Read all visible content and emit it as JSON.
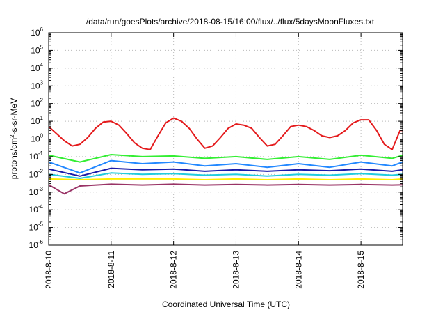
{
  "chart_data": {
    "type": "line",
    "title": "/data/run/goesPlots/archive/2018-08-15/16:00/flux/../flux/5daysMoonFluxes.txt",
    "xlabel": "Coordinated Universal Time (UTC)",
    "ylabel": {
      "pre": "protons/cm",
      "sup": "2",
      "post": "-s-sr-MeV"
    },
    "x_scale": "time",
    "y_scale": "log",
    "xlim": [
      "2018-08-10T00:00",
      "2018-08-15T16:00"
    ],
    "ylim": [
      1e-06,
      1000000.0
    ],
    "grid": true,
    "x_ticks": [
      "2018-8-10",
      "2018-8-11",
      "2018-8-12",
      "2018-8-13",
      "2018-8-14",
      "2018-8-15"
    ],
    "y_ticks": [
      {
        "base": "10",
        "exp": "-6",
        "value": 1e-06
      },
      {
        "base": "10",
        "exp": "-5",
        "value": 1e-05
      },
      {
        "base": "10",
        "exp": "-4",
        "value": 0.0001
      },
      {
        "base": "10",
        "exp": "-3",
        "value": 0.001
      },
      {
        "base": "10",
        "exp": "-2",
        "value": 0.01
      },
      {
        "base": "10",
        "exp": "-1",
        "value": 0.1
      },
      {
        "base": "10",
        "exp": "0",
        "value": 1
      },
      {
        "base": "10",
        "exp": "1",
        "value": 10
      },
      {
        "base": "10",
        "exp": "2",
        "value": 100
      },
      {
        "base": "10",
        "exp": "3",
        "value": 1000
      },
      {
        "base": "10",
        "exp": "4",
        "value": 10000
      },
      {
        "base": "10",
        "exp": "5",
        "value": 100000
      },
      {
        "base": "10",
        "exp": "6",
        "value": 1000000
      }
    ],
    "series": [
      {
        "color": "#e41a1c",
        "x": [
          "2018-08-10T00:00",
          "2018-08-10T03:00",
          "2018-08-10T06:00",
          "2018-08-10T09:00",
          "2018-08-10T12:00",
          "2018-08-10T15:00",
          "2018-08-10T18:00",
          "2018-08-10T21:00",
          "2018-08-11T00:00",
          "2018-08-11T03:00",
          "2018-08-11T06:00",
          "2018-08-11T09:00",
          "2018-08-11T12:00",
          "2018-08-11T15:00",
          "2018-08-11T18:00",
          "2018-08-11T21:00",
          "2018-08-12T00:00",
          "2018-08-12T03:00",
          "2018-08-12T06:00",
          "2018-08-12T09:00",
          "2018-08-12T12:00",
          "2018-08-12T15:00",
          "2018-08-12T18:00",
          "2018-08-12T21:00",
          "2018-08-13T00:00",
          "2018-08-13T03:00",
          "2018-08-13T06:00",
          "2018-08-13T09:00",
          "2018-08-13T12:00",
          "2018-08-13T15:00",
          "2018-08-13T18:00",
          "2018-08-13T21:00",
          "2018-08-14T00:00",
          "2018-08-14T03:00",
          "2018-08-14T06:00",
          "2018-08-14T09:00",
          "2018-08-14T12:00",
          "2018-08-14T15:00",
          "2018-08-14T18:00",
          "2018-08-14T21:00",
          "2018-08-15T00:00",
          "2018-08-15T03:00",
          "2018-08-15T06:00",
          "2018-08-15T09:00",
          "2018-08-15T12:00",
          "2018-08-15T15:00",
          "2018-08-15T16:00"
        ],
        "y": [
          5,
          2,
          0.8,
          0.4,
          0.5,
          1.2,
          4,
          9,
          10,
          6,
          2,
          0.6,
          0.3,
          0.25,
          1.5,
          8,
          15,
          10,
          4,
          1,
          0.3,
          0.4,
          1.2,
          4,
          7,
          6,
          4,
          1.2,
          0.4,
          0.5,
          1.5,
          5,
          6,
          5,
          3,
          1.5,
          1.2,
          1.5,
          3,
          8,
          12,
          12,
          3,
          0.5,
          0.25,
          3,
          3
        ]
      },
      {
        "color": "#33ee33",
        "x": [
          "2018-08-10T00:00",
          "2018-08-10T12:00",
          "2018-08-11T00:00",
          "2018-08-11T12:00",
          "2018-08-12T00:00",
          "2018-08-12T12:00",
          "2018-08-13T00:00",
          "2018-08-13T12:00",
          "2018-08-14T00:00",
          "2018-08-14T12:00",
          "2018-08-15T00:00",
          "2018-08-15T12:00",
          "2018-08-15T16:00"
        ],
        "y": [
          0.12,
          0.05,
          0.13,
          0.1,
          0.11,
          0.08,
          0.1,
          0.07,
          0.1,
          0.07,
          0.12,
          0.08,
          0.12
        ]
      },
      {
        "color": "#2288ff",
        "x": [
          "2018-08-10T00:00",
          "2018-08-10T12:00",
          "2018-08-11T00:00",
          "2018-08-11T12:00",
          "2018-08-12T00:00",
          "2018-08-12T12:00",
          "2018-08-13T00:00",
          "2018-08-13T12:00",
          "2018-08-14T00:00",
          "2018-08-14T12:00",
          "2018-08-15T00:00",
          "2018-08-15T12:00",
          "2018-08-15T16:00"
        ],
        "y": [
          0.05,
          0.012,
          0.06,
          0.04,
          0.05,
          0.03,
          0.04,
          0.025,
          0.04,
          0.025,
          0.05,
          0.03,
          0.05
        ]
      },
      {
        "color": "#22ccdd",
        "x": [
          "2018-08-10T00:00",
          "2018-08-10T12:00",
          "2018-08-11T00:00",
          "2018-08-11T12:00",
          "2018-08-12T00:00",
          "2018-08-12T12:00",
          "2018-08-13T00:00",
          "2018-08-13T12:00",
          "2018-08-14T00:00",
          "2018-08-14T12:00",
          "2018-08-15T00:00",
          "2018-08-15T12:00",
          "2018-08-15T16:00"
        ],
        "y": [
          0.01,
          0.006,
          0.012,
          0.01,
          0.011,
          0.009,
          0.01,
          0.008,
          0.01,
          0.009,
          0.011,
          0.009,
          0.01
        ]
      },
      {
        "color": "#1a1aaa",
        "x": [
          "2018-08-10T00:00",
          "2018-08-10T12:00",
          "2018-08-11T00:00",
          "2018-08-11T12:00",
          "2018-08-12T00:00",
          "2018-08-12T12:00",
          "2018-08-13T00:00",
          "2018-08-13T12:00",
          "2018-08-14T00:00",
          "2018-08-14T12:00",
          "2018-08-15T00:00",
          "2018-08-15T12:00",
          "2018-08-15T16:00"
        ],
        "y": [
          0.02,
          0.008,
          0.022,
          0.018,
          0.02,
          0.015,
          0.018,
          0.015,
          0.018,
          0.016,
          0.02,
          0.015,
          0.018
        ]
      },
      {
        "color": "#ffee00",
        "x": [
          "2018-08-10T00:00",
          "2018-08-10T12:00",
          "2018-08-11T00:00",
          "2018-08-11T12:00",
          "2018-08-12T00:00",
          "2018-08-12T12:00",
          "2018-08-13T00:00",
          "2018-08-13T12:00",
          "2018-08-14T00:00",
          "2018-08-14T12:00",
          "2018-08-15T00:00",
          "2018-08-15T12:00",
          "2018-08-15T16:00"
        ],
        "y": [
          0.0055,
          0.005,
          0.0055,
          0.0055,
          0.0055,
          0.005,
          0.0055,
          0.005,
          0.0055,
          0.005,
          0.0055,
          0.005,
          0.0055
        ]
      },
      {
        "color": "#993366",
        "x": [
          "2018-08-10T00:00",
          "2018-08-10T06:00",
          "2018-08-10T12:00",
          "2018-08-11T00:00",
          "2018-08-11T12:00",
          "2018-08-12T00:00",
          "2018-08-12T12:00",
          "2018-08-13T00:00",
          "2018-08-13T12:00",
          "2018-08-14T00:00",
          "2018-08-14T12:00",
          "2018-08-15T00:00",
          "2018-08-15T12:00",
          "2018-08-15T16:00"
        ],
        "y": [
          0.0026,
          0.0008,
          0.0022,
          0.0028,
          0.0025,
          0.0028,
          0.0025,
          0.0027,
          0.0025,
          0.0027,
          0.0025,
          0.0027,
          0.0025,
          0.0026
        ]
      }
    ]
  }
}
